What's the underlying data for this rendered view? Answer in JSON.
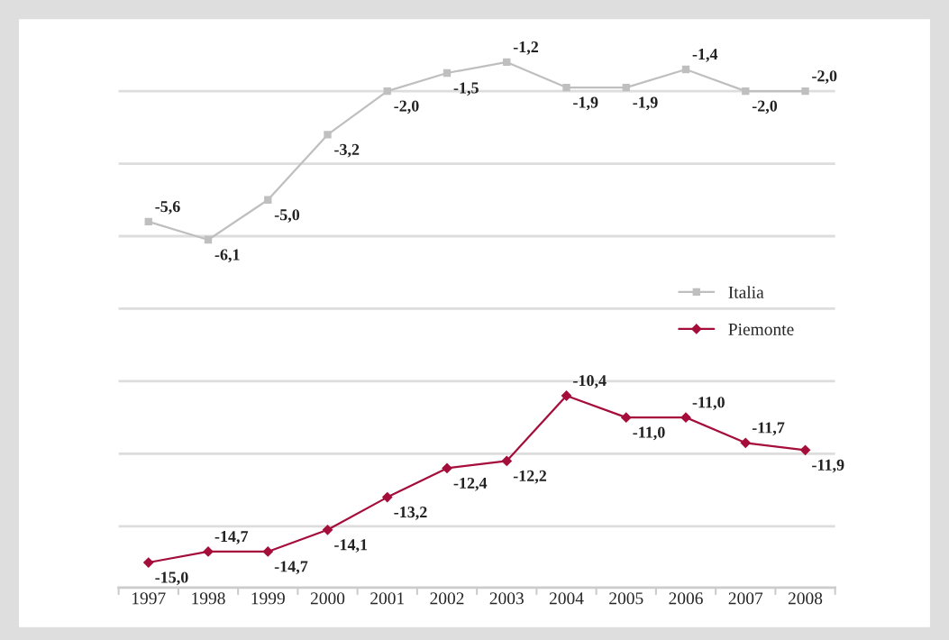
{
  "chart_data": {
    "type": "line",
    "categories": [
      "1997",
      "1998",
      "1999",
      "2000",
      "2001",
      "2002",
      "2003",
      "2004",
      "2005",
      "2006",
      "2007",
      "2008"
    ],
    "series": [
      {
        "name": "Italia",
        "color": "#bfbfbf",
        "marker": "square",
        "values": [
          -5.6,
          -6.1,
          -5.0,
          -3.2,
          -2.0,
          -1.5,
          -1.2,
          -1.9,
          -1.9,
          -1.4,
          -2.0,
          -2.0
        ],
        "value_labels": [
          "-5,6",
          "-6,1",
          "-5,0",
          "-3,2",
          "-2,0",
          "-1,5",
          "-1,2",
          "-1,9",
          "-1,9",
          "-1,4",
          "-2,0",
          "-2,0"
        ]
      },
      {
        "name": "Piemonte",
        "color": "#a50d3a",
        "marker": "diamond",
        "values": [
          -15.0,
          -14.7,
          -14.7,
          -14.1,
          -13.2,
          -12.4,
          -12.2,
          -10.4,
          -11.0,
          -11.0,
          -11.7,
          -11.9
        ],
        "value_labels": [
          "-15,0",
          "-14,7",
          "-14,7",
          "-14,1",
          "-13,2",
          "-12,4",
          "-12,2",
          "-10,4",
          "-11,0",
          "-11,0",
          "-11,7",
          "-11,9"
        ]
      }
    ],
    "tick_labels": "x",
    "grid": "y",
    "legend": "right"
  }
}
